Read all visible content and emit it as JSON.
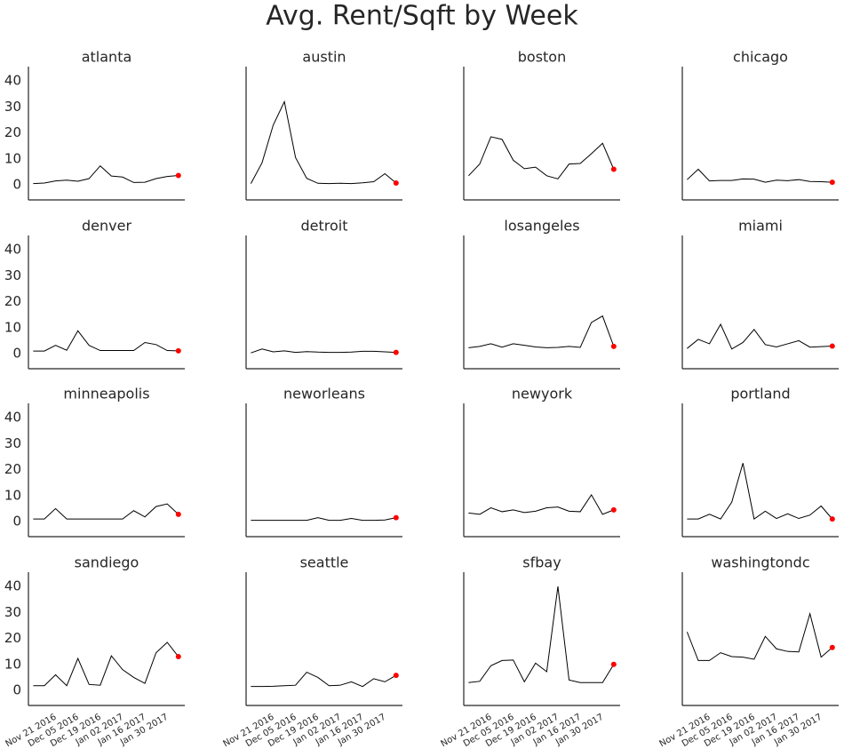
{
  "chart_data": {
    "type": "line",
    "title": "Avg. Rent/Sqft by Week",
    "x": [
      "2016-11-07",
      "2016-11-14",
      "2016-11-21",
      "2016-11-28",
      "2016-12-05",
      "2016-12-12",
      "2016-12-19",
      "2016-12-26",
      "2017-01-02",
      "2017-01-09",
      "2017-01-16",
      "2017-01-23",
      "2017-01-30",
      "2017-02-06"
    ],
    "xlim": [
      "2016-11-04",
      "2017-02-10"
    ],
    "xticks": [
      {
        "value": "2016-11-21",
        "label": "Nov 21 2016"
      },
      {
        "value": "2016-12-05",
        "label": "Dec 05 2016"
      },
      {
        "value": "2016-12-19",
        "label": "Dec 19 2016"
      },
      {
        "value": "2017-01-02",
        "label": "Jan 02 2017"
      },
      {
        "value": "2017-01-16",
        "label": "Jan 16 2017"
      },
      {
        "value": "2017-01-30",
        "label": "Jan 30 2017"
      }
    ],
    "ylim": [
      -5.8,
      45.5
    ],
    "yticks": [
      0,
      10,
      20,
      30,
      40
    ],
    "color": "#000000",
    "last_point_color": "#ff0000",
    "panels": [
      {
        "title": "atlanta",
        "values": [
          0.5,
          0.7,
          1.5,
          1.8,
          1.4,
          2.4,
          7.3,
          3.4,
          3.0,
          0.9,
          1.0,
          2.4,
          3.2,
          3.6
        ]
      },
      {
        "title": "austin",
        "values": [
          0.5,
          8.5,
          23,
          32,
          10.5,
          2.5,
          0.6,
          0.5,
          0.6,
          0.5,
          0.8,
          1.2,
          4.3,
          0.7
        ]
      },
      {
        "title": "boston",
        "values": [
          3.5,
          8,
          18.5,
          17.5,
          9.5,
          6.2,
          6.8,
          3.5,
          2.3,
          8,
          8.2,
          12,
          16,
          6
        ]
      },
      {
        "title": "chicago",
        "values": [
          2,
          6,
          1.5,
          1.7,
          1.7,
          2.3,
          2.2,
          1,
          1.8,
          1.6,
          2,
          1.3,
          1.2,
          1.0
        ]
      },
      {
        "title": "denver",
        "values": [
          1,
          1,
          3.2,
          1.3,
          8.8,
          3.2,
          1.2,
          1.2,
          1.2,
          1.2,
          4.3,
          3.5,
          1.2,
          1.1
        ]
      },
      {
        "title": "detroit",
        "values": [
          0.3,
          1.8,
          0.7,
          1.1,
          0.5,
          0.8,
          0.6,
          0.5,
          0.5,
          0.6,
          0.9,
          0.9,
          0.7,
          0.5
        ]
      },
      {
        "title": "losangeles",
        "values": [
          2.3,
          2.8,
          3.8,
          2.5,
          3.8,
          3.2,
          2.6,
          2.3,
          2.4,
          2.8,
          2.4,
          12,
          14.5,
          2.8
        ]
      },
      {
        "title": "miami",
        "values": [
          2,
          5.5,
          3.8,
          11.3,
          1.8,
          4.3,
          9.3,
          3.5,
          2.6,
          3.8,
          5,
          2.5,
          2.7,
          2.9
        ]
      },
      {
        "title": "minneapolis",
        "values": [
          1,
          1,
          5,
          1,
          1,
          1,
          1,
          1,
          1,
          4.2,
          1.8,
          5.8,
          6.8,
          2.8
        ]
      },
      {
        "title": "neworleans",
        "values": [
          0.5,
          0.5,
          0.5,
          0.5,
          0.5,
          0.5,
          1.5,
          0.5,
          0.5,
          1.2,
          0.5,
          0.5,
          0.6,
          1.5
        ]
      },
      {
        "title": "newyork",
        "values": [
          3.3,
          2.8,
          5.3,
          3.8,
          4.5,
          3.5,
          4,
          5.3,
          5.6,
          4,
          3.8,
          10.3,
          2.8,
          4.5
        ]
      },
      {
        "title": "portland",
        "values": [
          1,
          1,
          2.8,
          1,
          7.5,
          22.5,
          1,
          4,
          1.2,
          3,
          1.2,
          2.5,
          6,
          1
        ]
      },
      {
        "title": "sandiego",
        "values": [
          1.8,
          1.8,
          6,
          1.8,
          12.3,
          2.3,
          2,
          13.3,
          8,
          5,
          2.7,
          14.5,
          18.5,
          13
        ]
      },
      {
        "title": "seattle",
        "values": [
          1.5,
          1.5,
          1.6,
          1.8,
          2,
          7,
          5,
          1.8,
          2,
          3.3,
          1.5,
          4.5,
          3.3,
          5.8
        ]
      },
      {
        "title": "sfbay",
        "values": [
          3,
          3.5,
          9.5,
          11.5,
          11.7,
          3.3,
          10.5,
          7.2,
          40,
          4,
          3,
          3,
          3,
          10
        ]
      },
      {
        "title": "washingtondc",
        "values": [
          22.5,
          11.5,
          11.5,
          14.5,
          13,
          12.8,
          12,
          20.8,
          16,
          15,
          14.8,
          29.5,
          12.8,
          16.5
        ]
      }
    ]
  }
}
